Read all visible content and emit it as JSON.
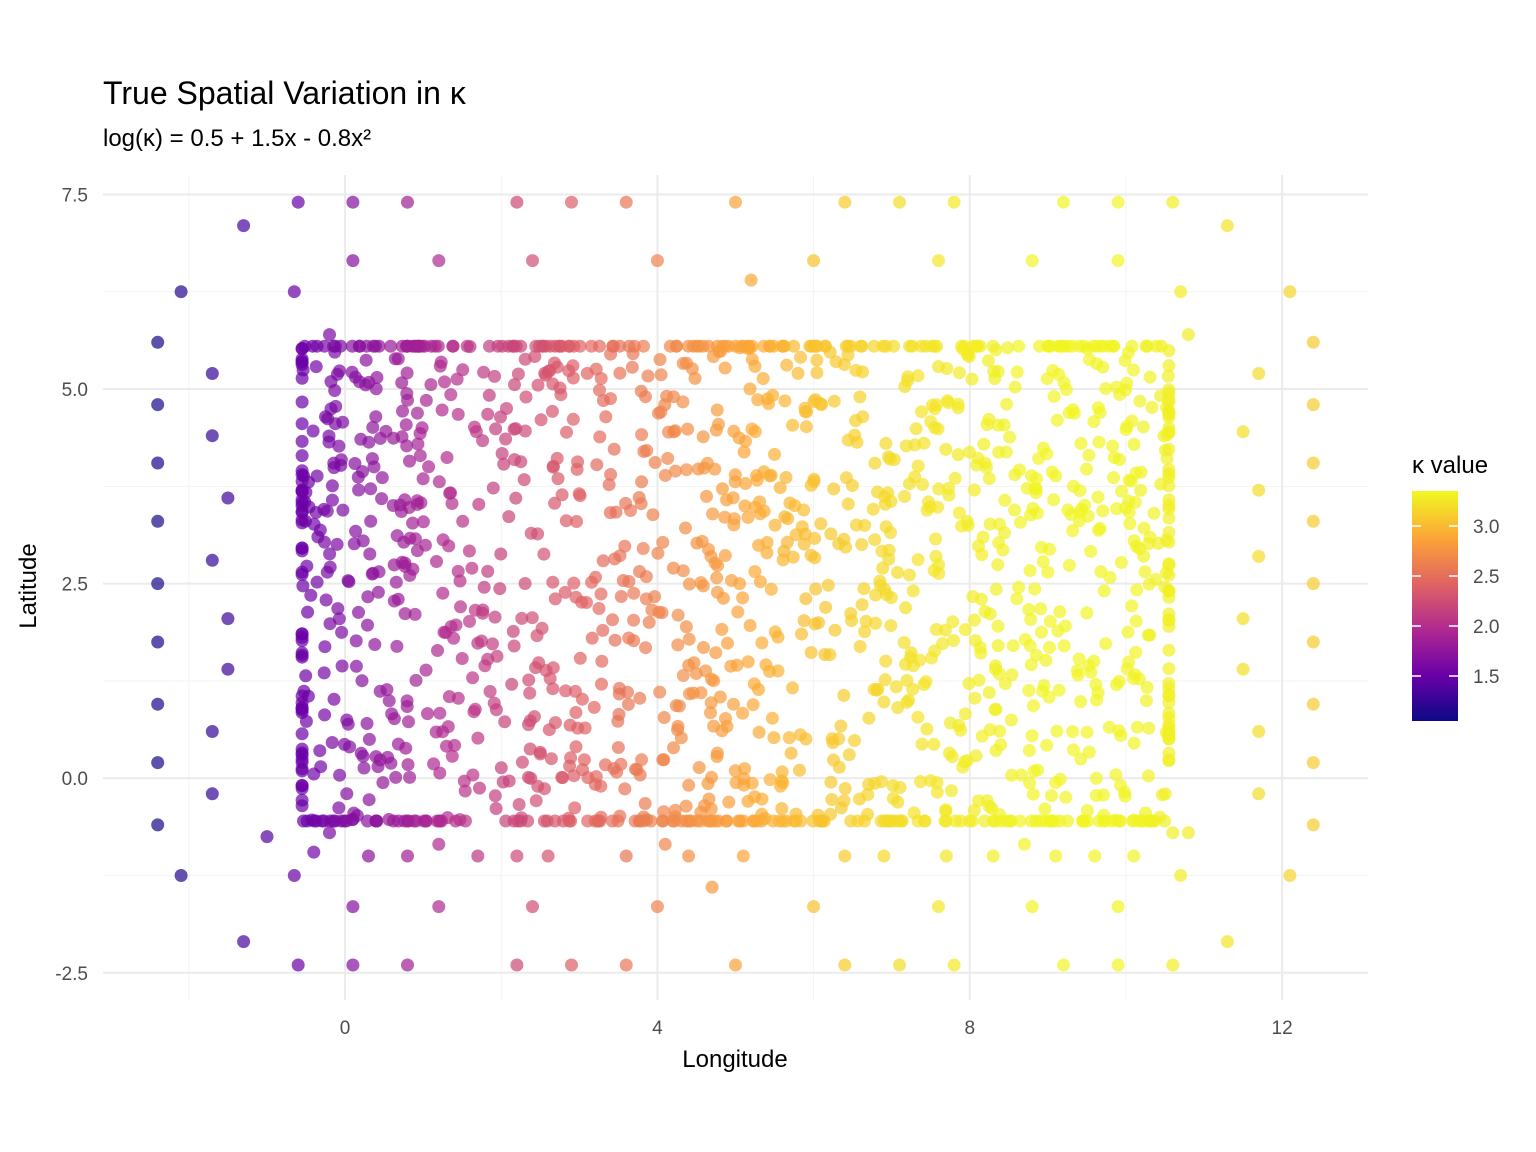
{
  "colors": {
    "scale": [
      "#0d0887",
      "#6a00a8",
      "#b12a90",
      "#e16462",
      "#fca636",
      "#f0f921"
    ]
  },
  "chart_data": {
    "type": "scatter",
    "title": "True Spatial Variation in κ",
    "subtitle": "log(κ) = 0.5 + 1.5x - 0.8x²",
    "xlabel": "Longitude",
    "ylabel": "Latitude",
    "xlim": [
      -3.1,
      13.1
    ],
    "ylim": [
      -2.85,
      7.75
    ],
    "x_ticks": [
      0,
      4,
      8,
      12
    ],
    "x_tick_labels": [
      "0",
      "4",
      "8",
      "12"
    ],
    "y_ticks": [
      -2.5,
      0,
      2.5,
      5,
      7.5
    ],
    "y_tick_labels": [
      "-2.5",
      "0.0",
      "2.5",
      "5.0",
      "7.5"
    ],
    "grid": true,
    "colorscale": "plasma",
    "legend": {
      "title": "κ value",
      "placement": "right",
      "range": [
        1.05,
        3.35
      ],
      "ticks": [
        1.5,
        2.0,
        2.5,
        3.0
      ],
      "tick_labels": [
        "1.5",
        "2.0",
        "2.5",
        "3.0"
      ]
    },
    "point_opacity": 0.7,
    "inner_region": {
      "x": [
        -0.55,
        10.55
      ],
      "y": [
        -0.55,
        5.55
      ],
      "n_points": 1600
    },
    "outer_points": [
      [
        -0.6,
        7.4
      ],
      [
        0.1,
        7.4
      ],
      [
        0.8,
        7.4
      ],
      [
        2.2,
        7.4
      ],
      [
        2.9,
        7.4
      ],
      [
        3.6,
        7.4
      ],
      [
        5.0,
        7.4
      ],
      [
        6.4,
        7.4
      ],
      [
        7.1,
        7.4
      ],
      [
        7.8,
        7.4
      ],
      [
        9.2,
        7.4
      ],
      [
        9.9,
        7.4
      ],
      [
        10.6,
        7.4
      ],
      [
        -1.3,
        7.1
      ],
      [
        11.3,
        7.1
      ],
      [
        0.1,
        6.65
      ],
      [
        1.2,
        6.65
      ],
      [
        2.4,
        6.65
      ],
      [
        4.0,
        6.65
      ],
      [
        6.0,
        6.65
      ],
      [
        7.6,
        6.65
      ],
      [
        8.8,
        6.65
      ],
      [
        9.9,
        6.65
      ],
      [
        5.2,
        6.4
      ],
      [
        -2.1,
        6.25
      ],
      [
        -0.65,
        6.25
      ],
      [
        10.7,
        6.25
      ],
      [
        12.1,
        6.25
      ],
      [
        -0.2,
        5.7
      ],
      [
        10.8,
        5.7
      ],
      [
        -2.4,
        5.6
      ],
      [
        12.4,
        5.6
      ],
      [
        -1.7,
        5.2
      ],
      [
        11.7,
        5.2
      ],
      [
        -2.4,
        4.8
      ],
      [
        12.4,
        4.8
      ],
      [
        -1.7,
        4.4
      ],
      [
        11.5,
        4.45
      ],
      [
        -2.4,
        4.05
      ],
      [
        12.4,
        4.05
      ],
      [
        -1.5,
        3.6
      ],
      [
        11.7,
        3.7
      ],
      [
        -2.4,
        3.3
      ],
      [
        12.4,
        3.3
      ],
      [
        -1.7,
        2.8
      ],
      [
        11.7,
        2.85
      ],
      [
        -2.4,
        2.5
      ],
      [
        12.4,
        2.5
      ],
      [
        -1.5,
        2.05
      ],
      [
        11.5,
        2.05
      ],
      [
        -2.4,
        1.75
      ],
      [
        12.4,
        1.75
      ],
      [
        -1.5,
        1.4
      ],
      [
        11.5,
        1.4
      ],
      [
        -2.4,
        0.95
      ],
      [
        12.4,
        0.95
      ],
      [
        -1.7,
        0.6
      ],
      [
        11.7,
        0.6
      ],
      [
        -2.4,
        0.2
      ],
      [
        12.4,
        0.2
      ],
      [
        -1.7,
        -0.2
      ],
      [
        11.7,
        -0.2
      ],
      [
        -2.4,
        -0.6
      ],
      [
        12.4,
        -0.6
      ],
      [
        -0.2,
        -0.7
      ],
      [
        10.8,
        -0.7
      ],
      [
        -1.0,
        -0.75
      ],
      [
        10.6,
        -0.7
      ],
      [
        -0.4,
        -0.95
      ],
      [
        0.3,
        -1.0
      ],
      [
        0.8,
        -1.0
      ],
      [
        1.2,
        -0.85
      ],
      [
        1.7,
        -1.0
      ],
      [
        2.2,
        -1.0
      ],
      [
        2.6,
        -1.0
      ],
      [
        3.6,
        -1.0
      ],
      [
        4.1,
        -0.85
      ],
      [
        4.4,
        -1.0
      ],
      [
        5.1,
        -1.0
      ],
      [
        6.4,
        -1.0
      ],
      [
        6.9,
        -1.0
      ],
      [
        7.7,
        -1.0
      ],
      [
        8.3,
        -1.0
      ],
      [
        8.7,
        -0.85
      ],
      [
        9.1,
        -1.0
      ],
      [
        9.6,
        -1.0
      ],
      [
        10.1,
        -1.0
      ],
      [
        -2.1,
        -1.25
      ],
      [
        -0.65,
        -1.25
      ],
      [
        10.7,
        -1.25
      ],
      [
        12.1,
        -1.25
      ],
      [
        4.7,
        -1.4
      ],
      [
        0.1,
        -1.65
      ],
      [
        1.2,
        -1.65
      ],
      [
        2.4,
        -1.65
      ],
      [
        4.0,
        -1.65
      ],
      [
        6.0,
        -1.65
      ],
      [
        7.6,
        -1.65
      ],
      [
        8.8,
        -1.65
      ],
      [
        9.9,
        -1.65
      ],
      [
        -1.3,
        -2.1
      ],
      [
        11.3,
        -2.1
      ],
      [
        -0.6,
        -2.4
      ],
      [
        0.1,
        -2.4
      ],
      [
        0.8,
        -2.4
      ],
      [
        2.2,
        -2.4
      ],
      [
        2.9,
        -2.4
      ],
      [
        3.6,
        -2.4
      ],
      [
        5.0,
        -2.4
      ],
      [
        6.4,
        -2.4
      ],
      [
        7.1,
        -2.4
      ],
      [
        7.8,
        -2.4
      ],
      [
        9.2,
        -2.4
      ],
      [
        9.9,
        -2.4
      ],
      [
        10.6,
        -2.4
      ]
    ]
  }
}
